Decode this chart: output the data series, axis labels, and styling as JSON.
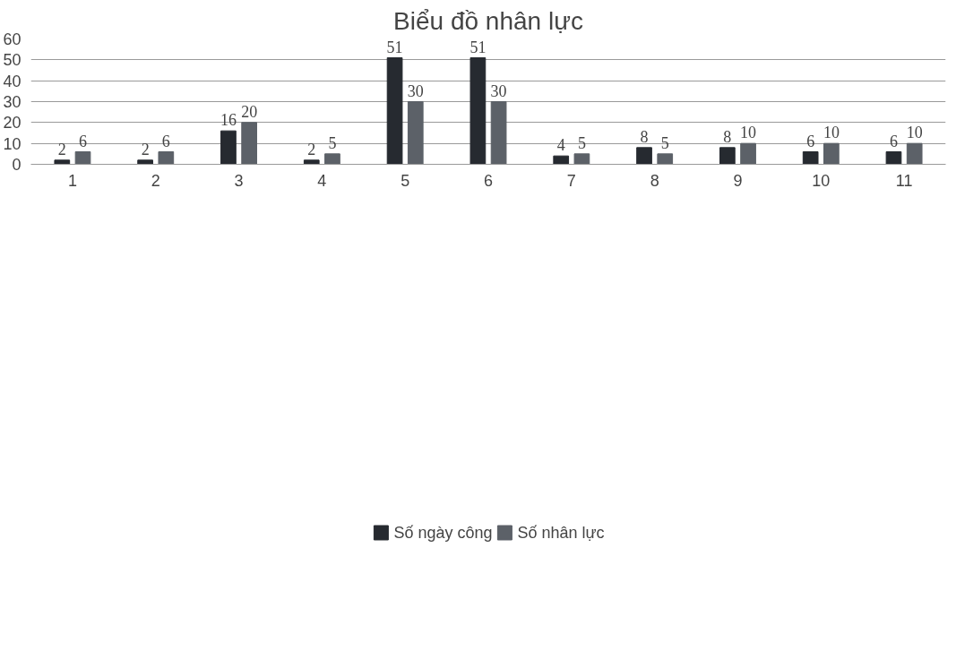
{
  "chart_data": {
    "type": "bar",
    "title": "Biểu đồ nhân lực",
    "categories": [
      "1",
      "2",
      "3",
      "4",
      "5",
      "6",
      "7",
      "8",
      "9",
      "10",
      "11"
    ],
    "series": [
      {
        "name": "Số ngày công",
        "color": "#262a30",
        "values": [
          2,
          2,
          16,
          2,
          51,
          51,
          4,
          8,
          8,
          6,
          6
        ]
      },
      {
        "name": "Số nhân lực",
        "color": "#5c6168",
        "values": [
          6,
          6,
          20,
          5,
          30,
          30,
          5,
          5,
          10,
          10,
          10
        ]
      }
    ],
    "ylim": [
      0,
      60
    ],
    "yticks": [
      0,
      10,
      20,
      30,
      40,
      50,
      60
    ],
    "grid": "y",
    "legend": "bottom",
    "data_labels": true
  }
}
